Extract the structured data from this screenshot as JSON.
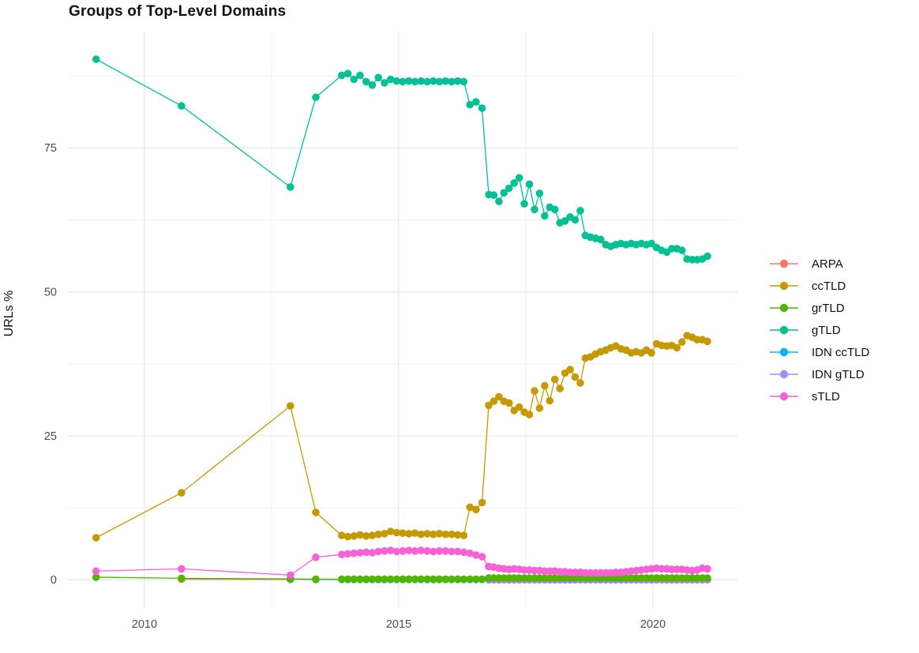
{
  "title": "Groups of Top-Level Domains",
  "axes": {
    "x": {
      "tick_labels": [
        "2010",
        "2015",
        "2020"
      ],
      "tick_values": [
        2010,
        2015,
        2020
      ],
      "minor_values": [
        2012.5,
        2017.5
      ],
      "min": 2008.48,
      "max": 2021.66
    },
    "y": {
      "title": "URLs %",
      "tick_labels": [
        "0",
        "25",
        "50",
        "75"
      ],
      "tick_values": [
        0,
        25,
        50,
        75
      ],
      "minor_values": [
        12.5,
        37.5,
        62.5,
        87.5
      ],
      "min": -4.9,
      "max": 95.2
    }
  },
  "style_colors": {
    "major_grid": "#e5e5e5",
    "minor_grid": "#f2f2f2",
    "tick_label": "#4d4d4d",
    "background": "#ffffff"
  },
  "legend": {
    "items": [
      {
        "label": "ARPA",
        "color": "#F8766D"
      },
      {
        "label": "ccTLD",
        "color": "#C49A00"
      },
      {
        "label": "grTLD",
        "color": "#53B400"
      },
      {
        "label": "gTLD",
        "color": "#00C094"
      },
      {
        "label": "IDN ccTLD",
        "color": "#00B6EB"
      },
      {
        "label": "IDN gTLD",
        "color": "#A58AFF"
      },
      {
        "label": "sTLD",
        "color": "#FB61D7"
      }
    ]
  },
  "chart_data": {
    "type": "line",
    "xlabel": "",
    "ylabel": "URLs %",
    "title": "Groups of Top-Level Domains",
    "xlim": [
      2008.48,
      2021.66
    ],
    "ylim": [
      -4.9,
      95.2
    ],
    "grid": true,
    "legend_position": "right",
    "series": [
      {
        "name": "ARPA",
        "color": "#F8766D",
        "x": [
          2010.73,
          2012.87
        ],
        "y": [
          0.1,
          0.05
        ]
      },
      {
        "name": "ccTLD",
        "color": "#C49A00",
        "x": [
          2009.05,
          2010.73,
          2012.87,
          2013.37,
          2013.88,
          2014,
          2014.12,
          2014.24,
          2014.36,
          2014.48,
          2014.6,
          2014.72,
          2014.84,
          2014.96,
          2015.08,
          2015.2,
          2015.32,
          2015.44,
          2015.56,
          2015.68,
          2015.8,
          2015.92,
          2016.04,
          2016.16,
          2016.28,
          2016.4,
          2016.52,
          2016.64,
          2016.77,
          2016.87,
          2016.97,
          2017.07,
          2017.17,
          2017.27,
          2017.37,
          2017.47,
          2017.57,
          2017.67,
          2017.77,
          2017.87,
          2017.97,
          2018.07,
          2018.17,
          2018.27,
          2018.37,
          2018.47,
          2018.57,
          2018.67,
          2018.77,
          2018.87,
          2018.97,
          2019.07,
          2019.17,
          2019.27,
          2019.37,
          2019.47,
          2019.57,
          2019.67,
          2019.77,
          2019.87,
          2019.97,
          2020.07,
          2020.17,
          2020.27,
          2020.37,
          2020.47,
          2020.57,
          2020.67,
          2020.77,
          2020.87,
          2020.97,
          2021.07
        ],
        "y": [
          7.3,
          15.1,
          30.2,
          11.7,
          7.7,
          7.5,
          7.6,
          7.8,
          7.6,
          7.7,
          7.9,
          8,
          8.4,
          8.2,
          8.1,
          8,
          8.1,
          7.9,
          8,
          7.9,
          8,
          7.9,
          7.9,
          7.8,
          7.7,
          12.6,
          12.2,
          13.4,
          30.3,
          31,
          31.8,
          31,
          30.7,
          29.4,
          30,
          29.1,
          28.7,
          32.8,
          29.8,
          33.7,
          31.1,
          34.8,
          33.2,
          35.9,
          36.5,
          35.2,
          34.2,
          38.5,
          38.7,
          39.2,
          39.6,
          39.9,
          40.3,
          40.6,
          40.1,
          39.9,
          39.4,
          39.6,
          39.4,
          39.9,
          39.4,
          41,
          40.7,
          40.6,
          40.7,
          40.3,
          41.3,
          42.4,
          42.1,
          41.7,
          41.7,
          41.4
        ]
      },
      {
        "name": "IDN ccTLD",
        "color": "#00B6EB",
        "x": [
          2012.87,
          2013.37,
          2013.88,
          2014,
          2014.12,
          2014.24,
          2014.36,
          2014.48,
          2014.6,
          2014.72,
          2014.84,
          2014.96,
          2015.08,
          2015.2,
          2015.32,
          2015.44,
          2015.56,
          2015.68,
          2015.8,
          2015.92,
          2016.04,
          2016.16,
          2016.28,
          2016.4,
          2016.52,
          2016.64,
          2016.77,
          2016.87,
          2016.97,
          2017.07,
          2017.17,
          2017.27,
          2017.37,
          2017.47,
          2017.57,
          2017.67,
          2017.77,
          2017.87,
          2017.97,
          2018.07,
          2018.17,
          2018.27,
          2018.37,
          2018.47,
          2018.57,
          2018.67,
          2018.77,
          2018.87,
          2018.97,
          2019.07,
          2019.17,
          2019.27,
          2019.37,
          2019.47,
          2019.57,
          2019.67,
          2019.77,
          2019.87,
          2019.97,
          2020.07,
          2020.17,
          2020.27,
          2020.37,
          2020.47,
          2020.57,
          2020.67,
          2020.77,
          2020.87,
          2020.97,
          2021.07
        ],
        "y": [
          0.1,
          0.05,
          0.05,
          0.05,
          0.05,
          0.05,
          0.05,
          0.05,
          0.05,
          0.05,
          0.05,
          0.05,
          0.05,
          0.05,
          0.05,
          0.05,
          0.05,
          0.05,
          0.05,
          0.05,
          0.05,
          0.05,
          0.05,
          0.05,
          0.05,
          0.05,
          0.05,
          0.05,
          0.05,
          0.05,
          0.05,
          0.05,
          0.05,
          0.05,
          0.05,
          0.05,
          0.05,
          0.05,
          0.05,
          0.05,
          0.05,
          0.05,
          0.05,
          0.05,
          0.05,
          0.05,
          0.05,
          0.05,
          0.05,
          0.05,
          0.05,
          0.05,
          0.05,
          0.05,
          0.05,
          0.05,
          0.05,
          0.05,
          0.05,
          0.05,
          0.05,
          0.05,
          0.05,
          0.05,
          0.05,
          0.05,
          0.05,
          0.05,
          0.05,
          0.05
        ]
      },
      {
        "name": "IDN gTLD",
        "color": "#A58AFF",
        "x": [
          2016.77,
          2016.87,
          2016.97,
          2017.07,
          2017.17,
          2017.27,
          2017.37,
          2017.47,
          2017.57,
          2017.67,
          2017.77,
          2017.87,
          2017.97,
          2018.07,
          2018.17,
          2018.27,
          2018.37,
          2018.47,
          2018.57,
          2018.67,
          2018.77,
          2018.87,
          2018.97,
          2019.07,
          2019.17,
          2019.27,
          2019.37,
          2019.47,
          2019.57,
          2019.67,
          2019.77,
          2019.87,
          2019.97,
          2020.07,
          2020.17,
          2020.27,
          2020.37,
          2020.47,
          2020.57,
          2020.67,
          2020.77,
          2020.87,
          2020.97,
          2021.07
        ],
        "y": [
          0,
          0,
          0,
          0,
          0,
          0,
          0,
          0,
          0,
          0,
          0,
          0,
          0,
          0,
          0,
          0,
          0,
          0,
          0,
          0,
          0,
          0,
          0,
          0,
          0,
          0,
          0,
          0,
          0,
          0,
          0,
          0,
          0,
          0,
          0,
          0,
          0,
          0,
          0,
          0,
          0,
          0,
          0,
          0
        ]
      },
      {
        "name": "grTLD",
        "color": "#53B400",
        "x": [
          2009.05,
          2010.73,
          2012.87,
          2013.37,
          2013.88,
          2014,
          2014.12,
          2014.24,
          2014.36,
          2014.48,
          2014.6,
          2014.72,
          2014.84,
          2014.96,
          2015.08,
          2015.2,
          2015.32,
          2015.44,
          2015.56,
          2015.68,
          2015.8,
          2015.92,
          2016.04,
          2016.16,
          2016.28,
          2016.4,
          2016.52,
          2016.64,
          2016.77,
          2016.87,
          2016.97,
          2017.07,
          2017.17,
          2017.27,
          2017.37,
          2017.47,
          2017.57,
          2017.67,
          2017.77,
          2017.87,
          2017.97,
          2018.07,
          2018.17,
          2018.27,
          2018.37,
          2018.47,
          2018.57,
          2018.67,
          2018.77,
          2018.87,
          2018.97,
          2019.07,
          2019.17,
          2019.27,
          2019.37,
          2019.47,
          2019.57,
          2019.67,
          2019.77,
          2019.87,
          2019.97,
          2020.07,
          2020.17,
          2020.27,
          2020.37,
          2020.47,
          2020.57,
          2020.67,
          2020.77,
          2020.87,
          2020.97,
          2021.07
        ],
        "y": [
          0.45,
          0.25,
          0.15,
          0.1,
          0.1,
          0.1,
          0.1,
          0.1,
          0.1,
          0.1,
          0.1,
          0.1,
          0.1,
          0.1,
          0.1,
          0.1,
          0.1,
          0.1,
          0.1,
          0.1,
          0.1,
          0.1,
          0.1,
          0.1,
          0.1,
          0.1,
          0.1,
          0.1,
          0.3,
          0.3,
          0.3,
          0.3,
          0.3,
          0.3,
          0.3,
          0.3,
          0.3,
          0.3,
          0.3,
          0.3,
          0.3,
          0.3,
          0.3,
          0.3,
          0.3,
          0.3,
          0.3,
          0.3,
          0.3,
          0.3,
          0.3,
          0.3,
          0.3,
          0.3,
          0.3,
          0.3,
          0.3,
          0.3,
          0.3,
          0.3,
          0.3,
          0.3,
          0.3,
          0.3,
          0.3,
          0.3,
          0.3,
          0.3,
          0.3,
          0.3,
          0.3,
          0.3
        ]
      },
      {
        "name": "gTLD",
        "color": "#00C094",
        "x": [
          2009.05,
          2010.73,
          2012.87,
          2013.37,
          2013.88,
          2014,
          2014.12,
          2014.24,
          2014.36,
          2014.48,
          2014.6,
          2014.72,
          2014.84,
          2014.96,
          2015.08,
          2015.2,
          2015.32,
          2015.44,
          2015.56,
          2015.68,
          2015.8,
          2015.92,
          2016.04,
          2016.16,
          2016.28,
          2016.4,
          2016.52,
          2016.64,
          2016.77,
          2016.87,
          2016.97,
          2017.07,
          2017.17,
          2017.27,
          2017.37,
          2017.47,
          2017.57,
          2017.67,
          2017.77,
          2017.87,
          2017.97,
          2018.07,
          2018.17,
          2018.27,
          2018.37,
          2018.47,
          2018.57,
          2018.67,
          2018.77,
          2018.87,
          2018.97,
          2019.07,
          2019.17,
          2019.27,
          2019.37,
          2019.47,
          2019.57,
          2019.67,
          2019.77,
          2019.87,
          2019.97,
          2020.07,
          2020.17,
          2020.27,
          2020.37,
          2020.47,
          2020.57,
          2020.67,
          2020.77,
          2020.87,
          2020.97,
          2021.07
        ],
        "y": [
          90.4,
          82.3,
          68.2,
          83.8,
          87.6,
          87.9,
          86.9,
          87.6,
          86.5,
          85.9,
          87.2,
          86.3,
          86.9,
          86.6,
          86.5,
          86.6,
          86.5,
          86.6,
          86.5,
          86.6,
          86.5,
          86.6,
          86.5,
          86.6,
          86.5,
          82.5,
          83,
          81.9,
          66.9,
          66.8,
          65.7,
          67.2,
          68,
          68.9,
          69.8,
          65.3,
          68.7,
          64.3,
          67.1,
          63.2,
          64.7,
          64.3,
          62,
          62.3,
          63,
          62.5,
          64.1,
          59.8,
          59.5,
          59.3,
          59.1,
          58.2,
          57.9,
          58.2,
          58.4,
          58.2,
          58.4,
          58.2,
          58.4,
          58.2,
          58.4,
          57.7,
          57.2,
          56.9,
          57.5,
          57.5,
          57.2,
          55.7,
          55.6,
          55.6,
          55.7,
          56.2
        ]
      },
      {
        "name": "sTLD",
        "color": "#FB61D7",
        "x": [
          2009.05,
          2010.73,
          2012.87,
          2013.37,
          2013.88,
          2014,
          2014.12,
          2014.24,
          2014.36,
          2014.48,
          2014.6,
          2014.72,
          2014.84,
          2014.96,
          2015.08,
          2015.2,
          2015.32,
          2015.44,
          2015.56,
          2015.68,
          2015.8,
          2015.92,
          2016.04,
          2016.16,
          2016.28,
          2016.4,
          2016.52,
          2016.64,
          2016.77,
          2016.87,
          2016.97,
          2017.07,
          2017.17,
          2017.27,
          2017.37,
          2017.47,
          2017.57,
          2017.67,
          2017.77,
          2017.87,
          2017.97,
          2018.07,
          2018.17,
          2018.27,
          2018.37,
          2018.47,
          2018.57,
          2018.67,
          2018.77,
          2018.87,
          2018.97,
          2019.07,
          2019.17,
          2019.27,
          2019.37,
          2019.47,
          2019.57,
          2019.67,
          2019.77,
          2019.87,
          2019.97,
          2020.07,
          2020.17,
          2020.27,
          2020.37,
          2020.47,
          2020.57,
          2020.67,
          2020.77,
          2020.87,
          2020.97,
          2021.07
        ],
        "y": [
          1.5,
          1.9,
          0.8,
          3.9,
          4.4,
          4.5,
          4.6,
          4.7,
          4.8,
          4.7,
          4.9,
          5,
          5.1,
          4.9,
          5,
          5.1,
          5,
          5.1,
          5,
          4.9,
          5,
          5,
          4.9,
          4.9,
          4.8,
          4.6,
          4.3,
          4,
          2.3,
          2.2,
          2,
          1.9,
          1.8,
          1.9,
          1.8,
          1.7,
          1.7,
          1.6,
          1.6,
          1.5,
          1.5,
          1.5,
          1.4,
          1.4,
          1.3,
          1.3,
          1.3,
          1.2,
          1.2,
          1.2,
          1.2,
          1.2,
          1.2,
          1.3,
          1.3,
          1.4,
          1.5,
          1.6,
          1.7,
          1.8,
          1.9,
          2,
          1.9,
          1.9,
          1.8,
          1.8,
          1.8,
          1.7,
          1.6,
          1.7,
          2,
          1.9
        ]
      }
    ]
  }
}
